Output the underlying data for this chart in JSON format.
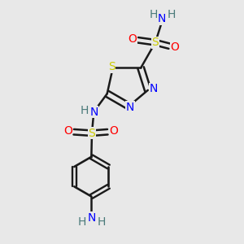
{
  "bg_color": "#e8e8e8",
  "bond_color": "#1a1a1a",
  "colors": {
    "S": "#cccc00",
    "N": "#0000ff",
    "O": "#ff0000",
    "H": "#4a7a7a",
    "C": "#1a1a1a"
  },
  "figsize": [
    3.0,
    3.0
  ],
  "dpi": 100
}
